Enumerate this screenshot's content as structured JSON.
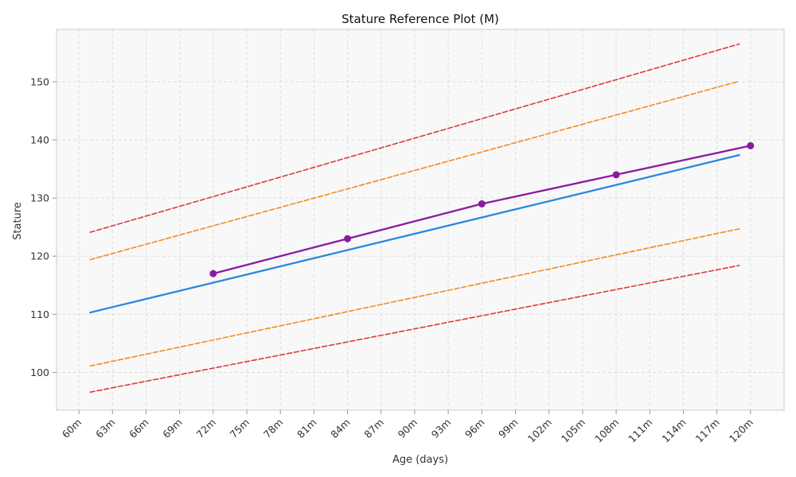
{
  "chart_data": {
    "type": "line",
    "title": "Stature Reference Plot (M)",
    "xlabel": "Age (days)",
    "ylabel": "Stature",
    "xlim": [
      58,
      123
    ],
    "ylim": [
      93.5,
      159
    ],
    "grid": true,
    "x_ticks": [
      60,
      63,
      66,
      69,
      72,
      75,
      78,
      81,
      84,
      87,
      90,
      93,
      96,
      99,
      102,
      105,
      108,
      111,
      114,
      117,
      120
    ],
    "x_tick_labels": [
      "60m",
      "63m",
      "66m",
      "69m",
      "72m",
      "75m",
      "78m",
      "81m",
      "84m",
      "87m",
      "90m",
      "93m",
      "96m",
      "99m",
      "102m",
      "105m",
      "108m",
      "111m",
      "114m",
      "117m",
      "120m"
    ],
    "y_ticks": [
      100,
      110,
      120,
      130,
      140,
      150
    ],
    "y_tick_labels": [
      "100",
      "110",
      "120",
      "130",
      "140",
      "150"
    ],
    "series": [
      {
        "color": "#e03a3a",
        "style": "dashed",
        "x": [
          61,
          119
        ],
        "y": [
          124.1,
          156.5
        ]
      },
      {
        "color": "#f28c1b",
        "style": "dashed",
        "x": [
          61,
          119
        ],
        "y": [
          119.4,
          150.1
        ]
      },
      {
        "color": "#2a88de",
        "style": "solid",
        "x": [
          61,
          119
        ],
        "y": [
          110.3,
          137.4
        ]
      },
      {
        "color": "#f28c1b",
        "style": "dashed",
        "x": [
          61,
          119
        ],
        "y": [
          101.1,
          124.7
        ]
      },
      {
        "color": "#e03a3a",
        "style": "dashed",
        "x": [
          61,
          119
        ],
        "y": [
          96.6,
          118.4
        ]
      },
      {
        "color": "#8b1aa0",
        "style": "solid",
        "markers": true,
        "x": [
          72,
          84,
          96,
          108,
          120
        ],
        "y": [
          117,
          123,
          129,
          134,
          139
        ]
      }
    ]
  }
}
